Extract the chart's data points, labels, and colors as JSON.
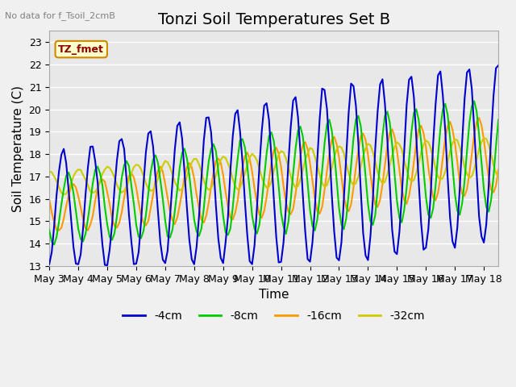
{
  "title": "Tonzi Soil Temperatures Set B",
  "xlabel": "Time",
  "ylabel": "Soil Temperature (C)",
  "no_data_label": "No data for f_Tsoil_2cmB",
  "legend_label": "TZ_fmet",
  "legend_series": [
    "-4cm",
    "-8cm",
    "-16cm",
    "-32cm"
  ],
  "legend_colors": [
    "#0000cc",
    "#00cc00",
    "#ff9900",
    "#cccc00"
  ],
  "line_colors": [
    "#0000cc",
    "#00cc00",
    "#ff9900",
    "#cccc00"
  ],
  "ylim": [
    13.0,
    23.5
  ],
  "yticks": [
    13.0,
    14.0,
    15.0,
    16.0,
    17.0,
    18.0,
    19.0,
    20.0,
    21.0,
    22.0,
    23.0
  ],
  "plot_bg_color": "#e8e8e8",
  "title_fontsize": 14,
  "axis_fontsize": 11,
  "tick_fontsize": 9
}
